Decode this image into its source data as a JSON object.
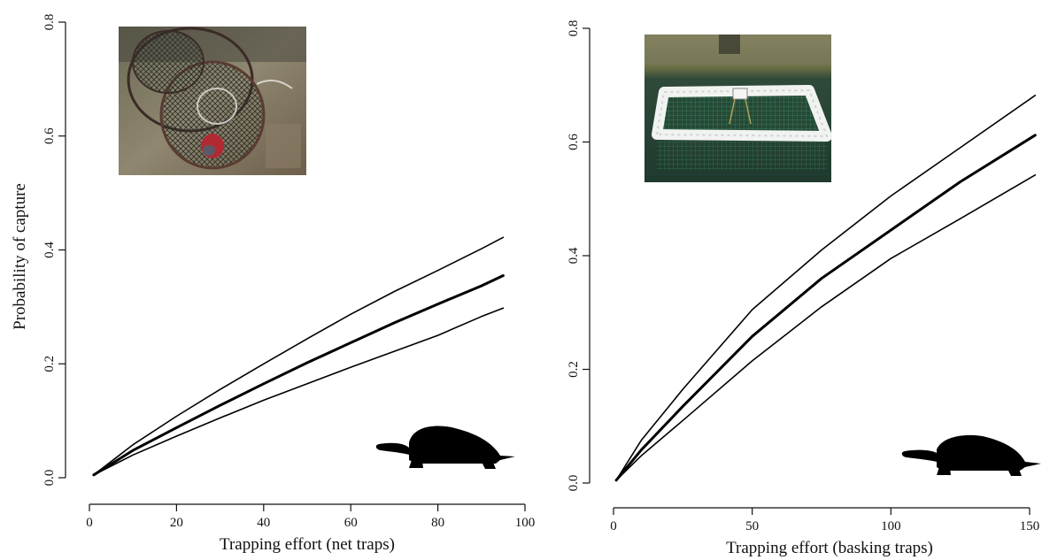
{
  "chart_data": [
    {
      "type": "line",
      "xlabel": "Trapping effort (net traps)",
      "ylabel": "Probability of capture",
      "xlim": [
        0,
        100
      ],
      "ylim": [
        0,
        0.8
      ],
      "xticks": [
        0,
        20,
        40,
        60,
        80,
        100
      ],
      "xtick_labels": [
        "0",
        "20",
        "40",
        "60",
        "80",
        "100"
      ],
      "yticks": [
        0,
        0.2,
        0.4,
        0.6,
        0.8
      ],
      "ytick_labels": [
        "0.0",
        "0.2",
        "0.4",
        "0.6",
        "0.8"
      ],
      "grid": false,
      "series": [
        {
          "style": "mean",
          "x": [
            1,
            10,
            20,
            30,
            40,
            50,
            60,
            70,
            80,
            90,
            95
          ],
          "y": [
            0.005,
            0.048,
            0.088,
            0.127,
            0.165,
            0.202,
            0.237,
            0.272,
            0.305,
            0.337,
            0.355
          ]
        },
        {
          "style": "upper",
          "x": [
            1,
            10,
            20,
            30,
            40,
            50,
            60,
            70,
            80,
            90,
            95
          ],
          "y": [
            0.005,
            0.058,
            0.108,
            0.155,
            0.2,
            0.244,
            0.287,
            0.327,
            0.364,
            0.402,
            0.422
          ]
        },
        {
          "style": "lower",
          "x": [
            1,
            10,
            20,
            30,
            40,
            50,
            60,
            70,
            80,
            90,
            95
          ],
          "y": [
            0.005,
            0.04,
            0.073,
            0.105,
            0.136,
            0.165,
            0.194,
            0.222,
            0.25,
            0.283,
            0.298
          ]
        }
      ],
      "images": [
        "net-trap-photo",
        "turtle-silhouette"
      ]
    },
    {
      "type": "line",
      "xlabel": "Trapping effort (basking traps)",
      "ylabel": "",
      "xlim": [
        0,
        150
      ],
      "ylim": [
        0,
        0.8
      ],
      "xticks": [
        0,
        50,
        100,
        150
      ],
      "xtick_labels": [
        "0",
        "50",
        "100",
        "150"
      ],
      "yticks": [
        0,
        0.2,
        0.4,
        0.6,
        0.8
      ],
      "ytick_labels": [
        "0.0",
        "0.2",
        "0.4",
        "0.6",
        "0.8"
      ],
      "grid": false,
      "series": [
        {
          "style": "mean",
          "x": [
            1,
            10,
            25,
            50,
            75,
            100,
            125,
            152
          ],
          "y": [
            0.005,
            0.058,
            0.135,
            0.258,
            0.36,
            0.445,
            0.53,
            0.612
          ]
        },
        {
          "style": "upper",
          "x": [
            1,
            10,
            25,
            50,
            75,
            100,
            125,
            152
          ],
          "y": [
            0.005,
            0.075,
            0.165,
            0.305,
            0.41,
            0.505,
            0.59,
            0.682
          ]
        },
        {
          "style": "lower",
          "x": [
            1,
            10,
            25,
            50,
            75,
            100,
            125,
            152
          ],
          "y": [
            0.005,
            0.048,
            0.11,
            0.215,
            0.31,
            0.395,
            0.465,
            0.542
          ]
        }
      ],
      "images": [
        "basking-trap-photo",
        "turtle-silhouette"
      ]
    }
  ]
}
